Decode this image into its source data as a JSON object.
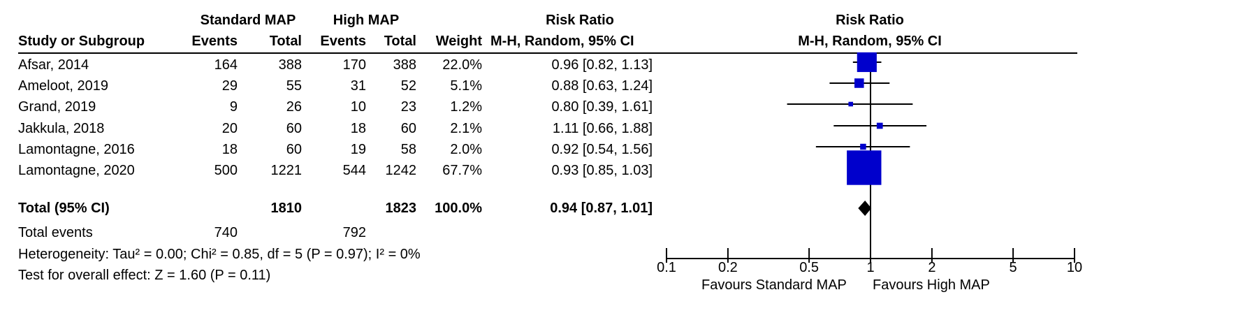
{
  "headers": {
    "group1": "Standard MAP",
    "group2": "High MAP",
    "effect_title": "Risk Ratio",
    "plot_title": "Risk Ratio",
    "study_col": "Study or Subgroup",
    "events1": "Events",
    "total1": "Total",
    "events2": "Events",
    "total2": "Total",
    "weight": "Weight",
    "method": "M-H, Random, 95% CI",
    "plot_method": "M-H, Random, 95% CI"
  },
  "studies": [
    {
      "name": "Afsar, 2014",
      "e1": "164",
      "n1": "388",
      "e2": "170",
      "n2": "388",
      "weight": "22.0%",
      "ci": "0.96 [0.82, 1.13]"
    },
    {
      "name": "Ameloot, 2019",
      "e1": "29",
      "n1": "55",
      "e2": "31",
      "n2": "52",
      "weight": "5.1%",
      "ci": "0.88 [0.63, 1.24]"
    },
    {
      "name": "Grand, 2019",
      "e1": "9",
      "n1": "26",
      "e2": "10",
      "n2": "23",
      "weight": "1.2%",
      "ci": "0.80 [0.39, 1.61]"
    },
    {
      "name": "Jakkula, 2018",
      "e1": "20",
      "n1": "60",
      "e2": "18",
      "n2": "60",
      "weight": "2.1%",
      "ci": "1.11 [0.66, 1.88]"
    },
    {
      "name": "Lamontagne, 2016",
      "e1": "18",
      "n1": "60",
      "e2": "19",
      "n2": "58",
      "weight": "2.0%",
      "ci": "0.92 [0.54, 1.56]"
    },
    {
      "name": "Lamontagne, 2020",
      "e1": "500",
      "n1": "1221",
      "e2": "544",
      "n2": "1242",
      "weight": "67.7%",
      "ci": "0.93 [0.85, 1.03]"
    }
  ],
  "total": {
    "label": "Total (95% CI)",
    "n1": "1810",
    "n2": "1823",
    "weight": "100.0%",
    "ci": "0.94 [0.87, 1.01]"
  },
  "total_events": {
    "label": "Total events",
    "e1": "740",
    "e2": "792"
  },
  "heterogeneity": "Heterogeneity: Tau² = 0.00; Chi² = 0.85, df = 5 (P = 0.97); I² = 0%",
  "overall_effect": "Test for overall effect: Z = 1.60 (P = 0.11)",
  "favours": {
    "left": "Favours Standard MAP",
    "right": "Favours High MAP"
  },
  "colors": {
    "marker": "#0000cc",
    "line": "#000000",
    "diamond": "#000000"
  },
  "chart_data": {
    "type": "forest",
    "scale": "log",
    "xlim": [
      0.1,
      10
    ],
    "ticks": [
      0.1,
      0.2,
      0.5,
      1,
      2,
      5,
      10
    ],
    "tick_labels": [
      "0.1",
      "0.2",
      "0.5",
      "1",
      "2",
      "5",
      "10"
    ],
    "studies": [
      {
        "name": "Afsar, 2014",
        "rr": 0.96,
        "lo": 0.82,
        "hi": 1.13,
        "weight": 22.0
      },
      {
        "name": "Ameloot, 2019",
        "rr": 0.88,
        "lo": 0.63,
        "hi": 1.24,
        "weight": 5.1
      },
      {
        "name": "Grand, 2019",
        "rr": 0.8,
        "lo": 0.39,
        "hi": 1.61,
        "weight": 1.2
      },
      {
        "name": "Jakkula, 2018",
        "rr": 1.11,
        "lo": 0.66,
        "hi": 1.88,
        "weight": 2.1
      },
      {
        "name": "Lamontagne, 2016",
        "rr": 0.92,
        "lo": 0.54,
        "hi": 1.56,
        "weight": 2.0
      },
      {
        "name": "Lamontagne, 2020",
        "rr": 0.93,
        "lo": 0.85,
        "hi": 1.03,
        "weight": 67.7
      }
    ],
    "pooled": {
      "rr": 0.94,
      "lo": 0.87,
      "hi": 1.01
    }
  }
}
